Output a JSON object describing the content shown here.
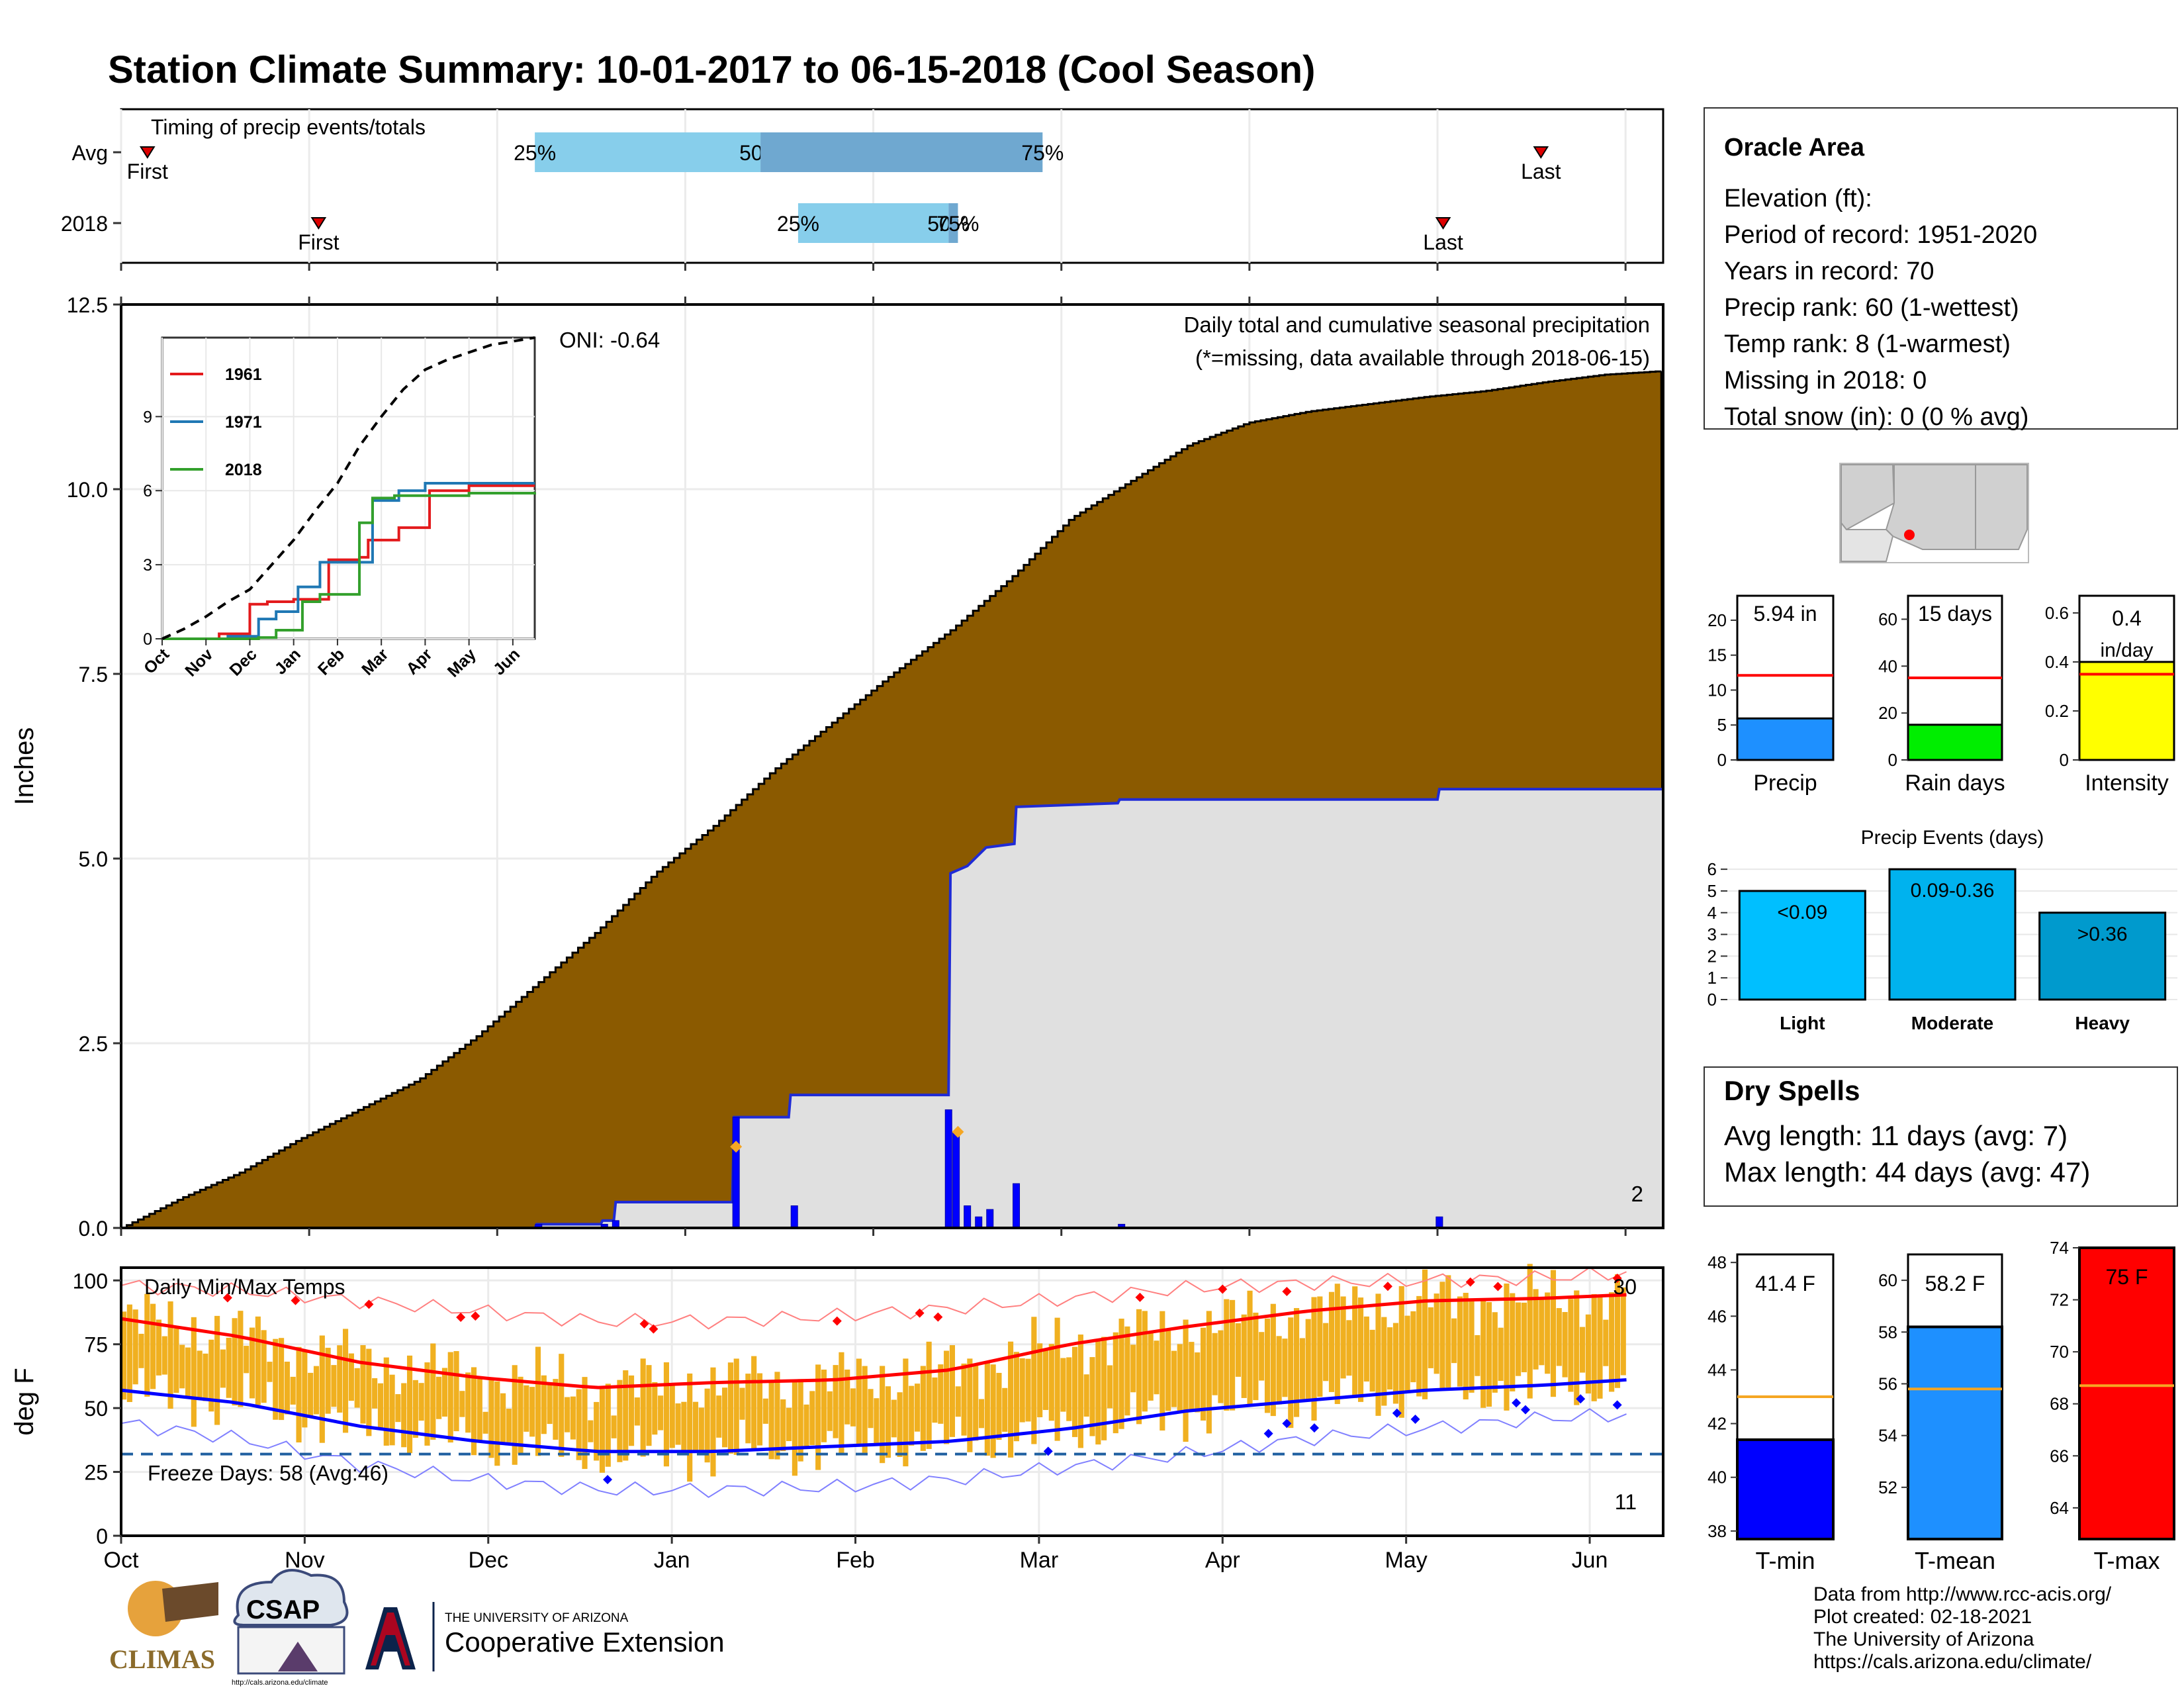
{
  "title": "Station Climate Summary: 10-01-2017 to 06-15-2018 (Cool Season)",
  "colors": {
    "title": "#2b3f8c",
    "brown": "#8b5a00",
    "blue_line": "#1f2bd6",
    "grey_fill": "#e0e0e0",
    "red": "#ff0000",
    "orange": "#f5a623",
    "dark_red_text": "#a52a2a",
    "freeze_line": "#1f5fa0"
  },
  "timing_panel": {
    "label": "Timing of precip events/totals",
    "rows": [
      {
        "name": "Avg",
        "first_label": "First",
        "last_label": "Last",
        "first_x": 0.14,
        "last_x": 7.55,
        "bars": [
          {
            "from": 2.2,
            "to": 3.4,
            "label_start": "25%",
            "label_end": "50%"
          },
          {
            "from": 3.4,
            "to": 4.9,
            "label_start": "",
            "label_end": "75%"
          }
        ]
      },
      {
        "name": "2018",
        "first_label": "First",
        "last_label": "Last",
        "first_x": 1.05,
        "last_x": 7.03,
        "bars": [
          {
            "from": 3.6,
            "to": 4.4,
            "label_start": "25%",
            "label_end": "50%"
          },
          {
            "from": 4.4,
            "to": 4.45,
            "label_start": "",
            "label_end": "75%"
          }
        ]
      }
    ]
  },
  "station": {
    "name": "Oracle Area",
    "lines": [
      "Elevation (ft):",
      "Period of record: 1951-2020",
      "Years in record: 70",
      "Precip rank: 60 (1-wettest)",
      "Temp rank: 8 (1-warmest)",
      "Missing in 2018: 0",
      "Total snow (in): 0 (0 % avg)"
    ]
  },
  "mini_bars": [
    {
      "label": "Precip",
      "value_text": "5.94 in",
      "value": 5.94,
      "avg": 12.1,
      "max": 23.5,
      "ticks": [
        0,
        5,
        10,
        15,
        20
      ],
      "color": "#1e90ff"
    },
    {
      "label": "Rain days",
      "value_text": "15 days",
      "value": 15,
      "avg": 35,
      "max": 70,
      "ticks": [
        0,
        20,
        40,
        60
      ],
      "color": "#00ee00"
    },
    {
      "label": "Intensity",
      "value_text": "0.4 in/day",
      "value": 0.4,
      "avg": 0.35,
      "max": 0.67,
      "ticks": [
        0.0,
        0.2,
        0.4,
        0.6
      ],
      "color": "#ffff00"
    }
  ],
  "precip_events": {
    "title": "Precip Events (days)",
    "categories": [
      "Light",
      "Moderate",
      "Heavy"
    ],
    "range_labels": [
      "<0.09",
      "0.09-0.36",
      ">0.36"
    ],
    "values": [
      5,
      6,
      4
    ],
    "colors": [
      "#00bfff",
      "#00b2ee",
      "#009acd"
    ],
    "ticks": [
      0,
      1,
      2,
      3,
      4,
      5,
      6
    ]
  },
  "dry_spells": {
    "title": "Dry Spells",
    "lines": [
      "Avg length: 11 days (avg: 7)",
      "Max length: 44 days (avg: 47)"
    ]
  },
  "temp_bars": [
    {
      "label": "T-min",
      "value_text": "41.4 F",
      "value": 41.4,
      "avg": 43.0,
      "ymin": 37.7,
      "ymax": 48.3,
      "ticks": [
        38,
        40,
        42,
        44,
        46,
        48
      ],
      "color": "#0000ff"
    },
    {
      "label": "T-mean",
      "value_text": "58.2 F",
      "value": 58.2,
      "avg": 55.8,
      "ymin": 50.0,
      "ymax": 61.0,
      "ticks": [
        52,
        54,
        56,
        58,
        60
      ],
      "color": "#1e90ff"
    },
    {
      "label": "T-max",
      "value_text": "75 F",
      "value": 75,
      "avg": 68.7,
      "ymin": 62.8,
      "ymax": 74.0,
      "ticks": [
        64,
        66,
        68,
        70,
        72,
        74
      ],
      "color": "#ff0000"
    }
  ],
  "footer": {
    "lines": [
      "Data from http://www.rcc-acis.org/",
      "Plot created: 02-18-2021",
      "The University of Arizona",
      "https://cals.arizona.edu/climate/"
    ],
    "logo_climas": "CLIMAS",
    "logo_csap": "CSAP",
    "logo_csap_url": "http://cals.arizona.edu/climate",
    "logo_ua_small": "THE UNIVERSITY OF ARIZONA",
    "logo_ua_big": "Cooperative Extension"
  },
  "chart_data": [
    {
      "type": "area",
      "title": "Daily total and cumulative seasonal precipitation",
      "subtitle": "(*=missing, data available through 2018-06-15)",
      "ylabel": "Inches",
      "ylim": [
        0,
        12.5
      ],
      "yticks": [
        "0.0",
        "2.5",
        "5.0",
        "7.5",
        "10.0",
        "12.5"
      ],
      "xticks": [
        "Oct",
        "Nov",
        "Dec",
        "Jan",
        "Feb",
        "Mar",
        "Apr",
        "May",
        "Jun"
      ],
      "oni_label": "ONI: -0.64",
      "corner_count": "2",
      "series": [
        {
          "kind": "avg_cumulative",
          "points": [
            [
              0,
              0.0
            ],
            [
              0.5,
              0.4
            ],
            [
              1,
              0.75
            ],
            [
              1.5,
              1.2
            ],
            [
              2,
              1.6
            ],
            [
              2.5,
              2.0
            ],
            [
              3,
              2.6
            ],
            [
              3.5,
              3.3
            ],
            [
              4,
              4.0
            ],
            [
              4.5,
              4.8
            ],
            [
              5,
              5.45
            ],
            [
              5.5,
              6.2
            ],
            [
              6,
              6.85
            ],
            [
              6.5,
              7.5
            ],
            [
              7,
              8.1
            ],
            [
              7.5,
              8.8
            ],
            [
              8,
              9.6
            ],
            [
              8.5,
              10.1
            ],
            [
              9,
              10.6
            ],
            [
              9.5,
              10.9
            ],
            [
              10,
              11.05
            ],
            [
              10.5,
              11.15
            ],
            [
              11,
              11.25
            ],
            [
              11.5,
              11.33
            ],
            [
              12,
              11.45
            ],
            [
              12.5,
              11.55
            ],
            [
              13,
              11.6
            ]
          ]
        },
        {
          "kind": "2018_cumulative",
          "points": [
            [
              0,
              0.0
            ],
            [
              2.2,
              0.0
            ],
            [
              2.21,
              0.05
            ],
            [
              2.55,
              0.05
            ],
            [
              2.56,
              0.1
            ],
            [
              2.62,
              0.1
            ],
            [
              2.63,
              0.35
            ],
            [
              3.25,
              0.35
            ],
            [
              3.26,
              1.5
            ],
            [
              3.55,
              1.5
            ],
            [
              3.56,
              1.8
            ],
            [
              4.4,
              1.8
            ],
            [
              4.41,
              4.8
            ],
            [
              4.5,
              4.9
            ],
            [
              4.6,
              5.15
            ],
            [
              4.75,
              5.2
            ],
            [
              4.76,
              5.7
            ],
            [
              5.3,
              5.75
            ],
            [
              5.31,
              5.8
            ],
            [
              6.5,
              5.8
            ],
            [
              6.51,
              5.8
            ],
            [
              7.0,
              5.8
            ],
            [
              7.01,
              5.94
            ],
            [
              8.2,
              5.94
            ]
          ]
        }
      ],
      "daily_bars": [
        [
          2.22,
          0.05
        ],
        [
          2.57,
          0.05
        ],
        [
          2.63,
          0.1
        ],
        [
          3.27,
          1.5
        ],
        [
          3.58,
          0.3
        ],
        [
          4.4,
          1.6
        ],
        [
          4.44,
          1.3
        ],
        [
          4.5,
          0.3
        ],
        [
          4.56,
          0.15
        ],
        [
          4.62,
          0.25
        ],
        [
          4.76,
          0.6
        ],
        [
          5.32,
          0.05
        ],
        [
          7.01,
          0.15
        ]
      ],
      "missing_markers": [
        [
          3.27,
          1.1
        ],
        [
          4.45,
          1.3
        ]
      ]
    },
    {
      "type": "line",
      "title": "",
      "ylim": [
        0,
        12.2
      ],
      "yticks": [
        "0",
        "3",
        "6",
        "9"
      ],
      "xticks": [
        "Oct",
        "Nov",
        "Dec",
        "Jan",
        "Feb",
        "Mar",
        "Apr",
        "May",
        "Jun"
      ],
      "series": [
        {
          "name": "1961",
          "color": "#e31a1c",
          "points": [
            [
              0,
              0
            ],
            [
              1.3,
              0.2
            ],
            [
              2.0,
              1.4
            ],
            [
              2.4,
              1.5
            ],
            [
              3.0,
              1.6
            ],
            [
              3.5,
              1.6
            ],
            [
              3.8,
              3.2
            ],
            [
              4.5,
              3.3
            ],
            [
              4.7,
              4.0
            ],
            [
              5.4,
              4.5
            ],
            [
              6.1,
              6.0
            ],
            [
              6.6,
              6.0
            ],
            [
              7.0,
              6.2
            ],
            [
              8.5,
              6.2
            ]
          ]
        },
        {
          "name": "1971",
          "color": "#1f78b4",
          "points": [
            [
              0,
              0
            ],
            [
              1.5,
              0.1
            ],
            [
              2.2,
              0.8
            ],
            [
              2.6,
              1.1
            ],
            [
              3.1,
              2.1
            ],
            [
              3.4,
              2.1
            ],
            [
              3.6,
              3.1
            ],
            [
              4.7,
              3.1
            ],
            [
              4.8,
              5.6
            ],
            [
              5.4,
              6.0
            ],
            [
              6.0,
              6.3
            ],
            [
              8.5,
              6.3
            ]
          ]
        },
        {
          "name": "2018",
          "color": "#33a02c",
          "points": [
            [
              0,
              0
            ],
            [
              2.2,
              0.05
            ],
            [
              2.6,
              0.35
            ],
            [
              3.2,
              1.5
            ],
            [
              3.6,
              1.8
            ],
            [
              4.4,
              1.8
            ],
            [
              4.5,
              4.7
            ],
            [
              4.8,
              5.7
            ],
            [
              5.3,
              5.8
            ],
            [
              7.0,
              5.9
            ],
            [
              8.5,
              5.94
            ]
          ]
        },
        {
          "name": "",
          "color": "#000000",
          "points": [
            [
              0,
              0
            ],
            [
              0.5,
              0.4
            ],
            [
              1,
              0.9
            ],
            [
              1.5,
              1.5
            ],
            [
              2,
              2.0
            ],
            [
              2.5,
              3.0
            ],
            [
              3,
              4.0
            ],
            [
              3.5,
              5.2
            ],
            [
              4,
              6.3
            ],
            [
              4.5,
              7.8
            ],
            [
              5,
              9.0
            ],
            [
              5.5,
              10.1
            ],
            [
              6,
              10.9
            ],
            [
              6.5,
              11.3
            ],
            [
              7,
              11.6
            ],
            [
              7.5,
              11.9
            ],
            [
              8,
              12.05
            ],
            [
              8.5,
              12.2
            ]
          ]
        }
      ]
    },
    {
      "type": "line",
      "title": "Daily Min/Max Temps",
      "ylabel": "deg F",
      "ylim": [
        0,
        100
      ],
      "yticks": [
        "0",
        "25",
        "50",
        "75",
        "100"
      ],
      "xticks": [
        "Oct",
        "Nov",
        "Dec",
        "Jan",
        "Feb",
        "Mar",
        "Apr",
        "May",
        "Jun"
      ],
      "freeze_label": "Freeze Days: 58 (Avg:46)",
      "freeze_line": 32,
      "count_max": "30",
      "count_min": "11",
      "avg_max": [
        [
          0,
          85
        ],
        [
          1,
          78
        ],
        [
          2,
          68
        ],
        [
          3,
          62
        ],
        [
          4,
          58
        ],
        [
          5,
          60
        ],
        [
          6,
          61
        ],
        [
          7,
          65
        ],
        [
          8,
          75
        ],
        [
          9,
          82
        ],
        [
          10,
          88
        ],
        [
          10.5,
          90
        ],
        [
          11,
          92
        ],
        [
          12,
          93
        ],
        [
          13,
          95
        ]
      ],
      "avg_min": [
        [
          0,
          57
        ],
        [
          1,
          52
        ],
        [
          2,
          43
        ],
        [
          3,
          37
        ],
        [
          4,
          33
        ],
        [
          5,
          33
        ],
        [
          6,
          35
        ],
        [
          7,
          37
        ],
        [
          8,
          42
        ],
        [
          9,
          49
        ],
        [
          10,
          53
        ],
        [
          10.5,
          55
        ],
        [
          11,
          57
        ],
        [
          12,
          59
        ],
        [
          13,
          62
        ]
      ],
      "record_max": [
        [
          0,
          98
        ],
        [
          1,
          96
        ],
        [
          2,
          92
        ],
        [
          3,
          88
        ],
        [
          4,
          84
        ],
        [
          5,
          84
        ],
        [
          6,
          86
        ],
        [
          7,
          89
        ],
        [
          8,
          93
        ],
        [
          9,
          97
        ],
        [
          10,
          99
        ],
        [
          11,
          100
        ],
        [
          12,
          101
        ],
        [
          13,
          104
        ]
      ],
      "record_min": [
        [
          0,
          44
        ],
        [
          1,
          38
        ],
        [
          2,
          28
        ],
        [
          3,
          22
        ],
        [
          4,
          18
        ],
        [
          5,
          18
        ],
        [
          6,
          19
        ],
        [
          7,
          22
        ],
        [
          8,
          27
        ],
        [
          9,
          32
        ],
        [
          10,
          38
        ],
        [
          11,
          42
        ],
        [
          12,
          46
        ],
        [
          13,
          48
        ]
      ]
    }
  ]
}
